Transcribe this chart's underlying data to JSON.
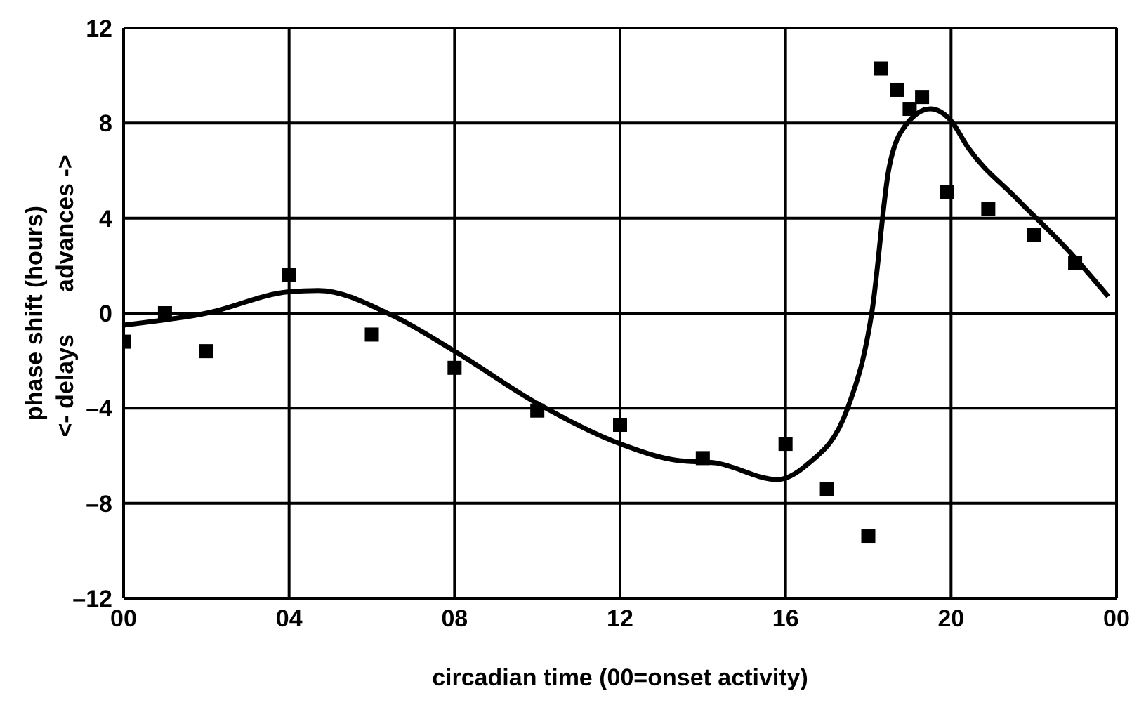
{
  "chart_data": {
    "type": "scatter",
    "xlabel": "circadian time (00=onset activity)",
    "ylabel": "phase shift  (hours)",
    "annotations": [
      "<- delays",
      "advances ->"
    ],
    "xlim": [
      0,
      24
    ],
    "xticks": [
      {
        "value": 0,
        "label": "00"
      },
      {
        "value": 4,
        "label": "04"
      },
      {
        "value": 8,
        "label": "08"
      },
      12,
      16,
      20,
      {
        "value": 24,
        "label": "00"
      }
    ],
    "ylim": [
      -12,
      12
    ],
    "yticks": [
      {
        "value": -12,
        "label": "–12"
      },
      {
        "value": -8,
        "label": "–8"
      },
      {
        "value": -4,
        "label": "–4"
      },
      0,
      4,
      8,
      12
    ],
    "grid": true,
    "legend": false,
    "series": [
      {
        "type": "scatter",
        "marker": "square",
        "color": "#000000",
        "x": [
          0,
          1,
          2,
          4,
          6,
          8,
          10,
          12,
          14,
          16,
          17,
          18,
          18.3,
          18.7,
          19,
          19.3,
          19.9,
          20.9,
          22,
          23
        ],
        "values": [
          -1.2,
          0,
          -1.6,
          1.6,
          -0.9,
          -2.3,
          -4.1,
          -4.7,
          -6.1,
          -5.5,
          -7.4,
          -9.4,
          10.3,
          9.4,
          8.6,
          9.1,
          5.1,
          4.4,
          3.3,
          2.1
        ]
      },
      {
        "type": "line",
        "marker": "none",
        "line_style": "solid",
        "color": "#000000",
        "x": [
          0,
          2,
          4,
          4.7,
          6.5,
          8,
          10,
          12,
          13.4,
          14.3,
          15.8,
          16.5,
          17.5,
          18.1,
          18.5,
          18.9,
          19.5,
          20,
          20.4,
          21.6,
          22.8,
          23.8
        ],
        "values": [
          -0.5,
          0,
          0.9,
          0.95,
          -0.1,
          -1.6,
          -3.8,
          -5.5,
          -6.2,
          -6.3,
          -7.0,
          -6.4,
          -4.0,
          0.2,
          6.1,
          7.9,
          8.6,
          8.1,
          7.0,
          4.8,
          2.7,
          0.7
        ]
      }
    ]
  }
}
